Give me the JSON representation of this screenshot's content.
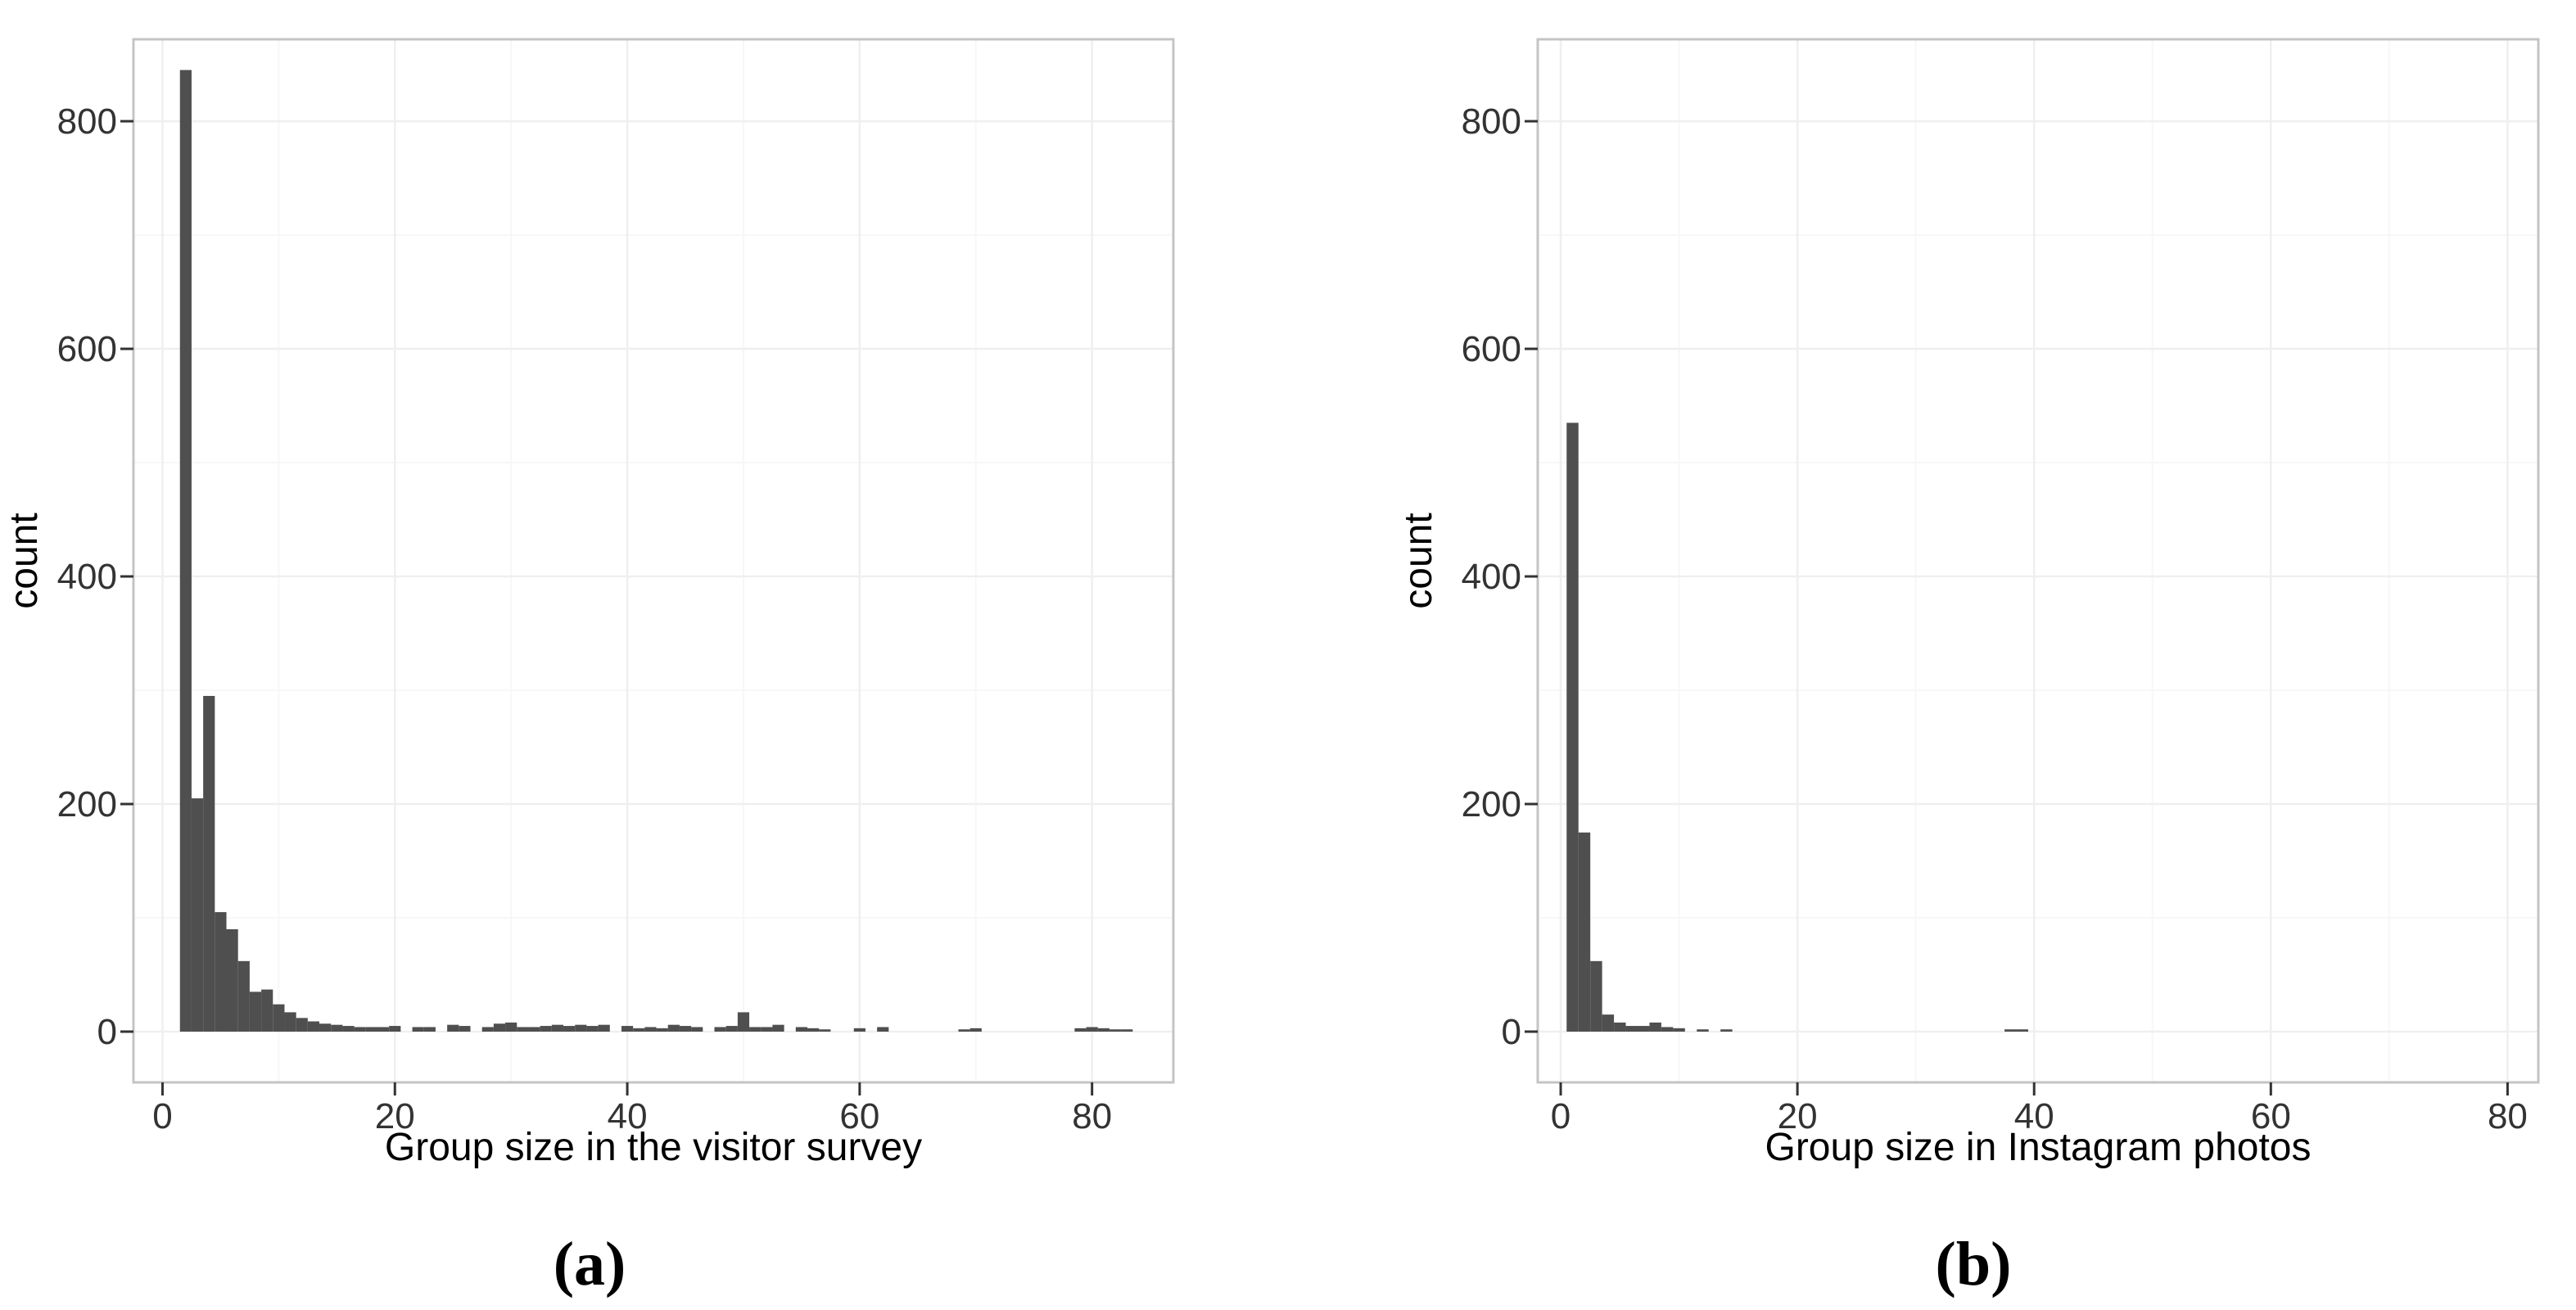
{
  "figure": {
    "background_color": "#ffffff",
    "bar_color": "#4f4f4f",
    "grid_major_color": "#efefef",
    "grid_minor_color": "#f7f7f7",
    "panel_border_color": "#c4c4c4",
    "tick_mark_color": "#333333",
    "tick_label_color": "#333333",
    "axis_title_color": "#000000",
    "caption_color": "#000000"
  },
  "chart_data": [
    {
      "type": "bar",
      "subtype": "histogram",
      "panel_label": "(a)",
      "title": "",
      "xlabel": "Group size in the visitor survey",
      "ylabel": "count",
      "legend": "none",
      "grid": "major and faint minor gridlines on white background",
      "xlim": [
        -2.5,
        87
      ],
      "ylim": [
        -44.6,
        872
      ],
      "xticks": [
        0,
        20,
        40,
        60,
        80
      ],
      "xticks_minor": [
        10,
        30,
        50,
        70
      ],
      "yticks": [
        0,
        200,
        400,
        600,
        800
      ],
      "yticks_minor": [
        100,
        300,
        500,
        700
      ],
      "binwidth": 1,
      "bins": {
        "x": [
          2,
          3,
          4,
          5,
          6,
          7,
          8,
          9,
          10,
          11,
          12,
          13,
          14,
          15,
          16,
          17,
          18,
          19,
          20,
          22,
          23,
          25,
          26,
          28,
          29,
          30,
          31,
          32,
          33,
          34,
          35,
          36,
          37,
          38,
          40,
          41,
          42,
          43,
          44,
          45,
          46,
          48,
          49,
          50,
          51,
          52,
          53,
          55,
          56,
          57,
          60,
          62,
          69,
          70,
          79,
          80,
          81,
          82,
          83
        ],
        "count": [
          845,
          205,
          295,
          105,
          90,
          62,
          35,
          37,
          24,
          17,
          12,
          9,
          7,
          6,
          5,
          4,
          4,
          4,
          5,
          4,
          4,
          6,
          5,
          4,
          7,
          8,
          4,
          4,
          5,
          6,
          5,
          6,
          5,
          6,
          5,
          3,
          4,
          3,
          6,
          5,
          4,
          4,
          5,
          17,
          4,
          4,
          6,
          4,
          3,
          2,
          3,
          4,
          2,
          3,
          3,
          4,
          3,
          2,
          2
        ]
      }
    },
    {
      "type": "bar",
      "subtype": "histogram",
      "panel_label": "(b)",
      "title": "",
      "xlabel": "Group size in Instagram photos",
      "ylabel": "count",
      "legend": "none",
      "grid": "major and faint minor gridlines on white background",
      "xlim": [
        -1.94,
        82.6
      ],
      "ylim": [
        -44.6,
        872
      ],
      "xticks": [
        0,
        20,
        40,
        60,
        80
      ],
      "xticks_minor": [
        10,
        30,
        50,
        70
      ],
      "yticks": [
        0,
        200,
        400,
        600,
        800
      ],
      "yticks_minor": [
        100,
        300,
        500,
        700
      ],
      "binwidth": 1,
      "bins": {
        "x": [
          1,
          2,
          3,
          4,
          5,
          6,
          7,
          8,
          9,
          10,
          12,
          14,
          38,
          39
        ],
        "count": [
          535,
          175,
          62,
          15,
          8,
          5,
          5,
          8,
          4,
          3,
          2,
          2,
          2,
          2
        ]
      }
    }
  ]
}
